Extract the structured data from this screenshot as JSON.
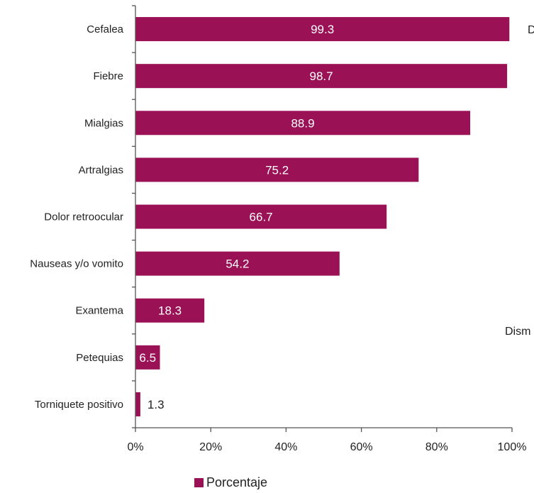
{
  "chart_data": {
    "type": "bar",
    "orientation": "horizontal",
    "categories": [
      "Cefalea",
      "Fiebre",
      "Mialgias",
      "Artralgias",
      "Dolor retroocular",
      "Nauseas y/o vomito",
      "Exantema",
      "Petequias",
      "Torniquete positivo"
    ],
    "series": [
      {
        "name": "Porcentaje",
        "values": [
          99.3,
          98.7,
          88.9,
          75.2,
          66.7,
          54.2,
          18.3,
          6.5,
          1.3
        ]
      }
    ],
    "x_ticks": [
      "0%",
      "20%",
      "40%",
      "60%",
      "80%",
      "100%"
    ],
    "xlim": [
      0,
      100
    ],
    "grid": false,
    "legend_position": "bottom",
    "bar_color": "#9B1156",
    "clipped_text": [
      "D",
      "Dism"
    ]
  }
}
